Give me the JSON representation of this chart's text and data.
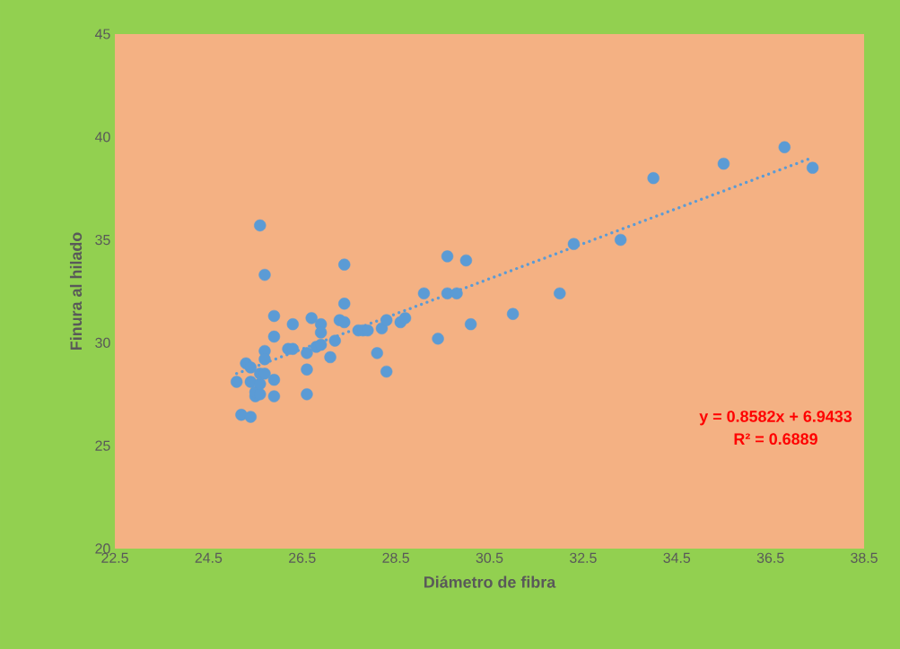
{
  "chart_data": {
    "type": "scatter",
    "xlabel": "Diámetro de fibra",
    "ylabel": "Finura al hilado",
    "xlim": [
      22.5,
      38.5
    ],
    "xticks": [
      22.5,
      24.5,
      26.5,
      28.5,
      30.5,
      32.5,
      34.5,
      36.5,
      38.5
    ],
    "ylim": [
      20,
      45
    ],
    "yticks": [
      20,
      25,
      30,
      35,
      40,
      45
    ],
    "grid": false,
    "marker": "circle",
    "annotations": [
      "y = 0.8582x + 6.9433",
      "R² = 0.6889"
    ],
    "series": [
      {
        "color": "#5b9bd5",
        "x": [
          25.1,
          25.2,
          25.3,
          25.4,
          25.4,
          25.4,
          25.5,
          25.5,
          25.6,
          25.6,
          25.6,
          25.6,
          25.7,
          25.7,
          25.7,
          25.7,
          25.9,
          25.9,
          25.9,
          25.9,
          26.2,
          26.3,
          26.3,
          26.6,
          26.6,
          26.6,
          26.7,
          26.8,
          26.9,
          26.9,
          26.9,
          27.1,
          27.2,
          27.3,
          27.4,
          27.4,
          27.4,
          27.7,
          27.8,
          27.9,
          28.1,
          28.2,
          28.3,
          28.3,
          28.6,
          28.7,
          29.1,
          29.4,
          29.6,
          29.6,
          29.8,
          30.0,
          30.1,
          31.0,
          32.0,
          32.3,
          33.3,
          34.0,
          35.5,
          36.8,
          37.4
        ],
        "values": [
          28.1,
          26.5,
          29.0,
          26.4,
          28.8,
          28.1,
          27.4,
          27.6,
          35.7,
          27.5,
          28.0,
          28.5,
          33.3,
          29.6,
          29.2,
          28.5,
          31.3,
          30.3,
          28.2,
          27.4,
          29.7,
          30.9,
          29.7,
          27.5,
          28.7,
          29.5,
          31.2,
          29.8,
          29.9,
          30.9,
          30.5,
          29.3,
          30.1,
          31.1,
          33.8,
          31.9,
          31.0,
          30.6,
          30.6,
          30.6,
          29.5,
          30.7,
          31.1,
          28.6,
          31.0,
          31.2,
          32.4,
          30.2,
          34.2,
          32.4,
          32.4,
          34.0,
          30.9,
          31.4,
          32.4,
          34.8,
          35.0,
          38.0,
          38.7,
          39.5,
          38.5
        ]
      },
      {
        "type": "line",
        "color": "#5b9bd5",
        "line_style": "dotted",
        "marker": "none",
        "x": [
          25.1,
          37.4
        ],
        "values": [
          28.5,
          39.0
        ]
      }
    ]
  }
}
